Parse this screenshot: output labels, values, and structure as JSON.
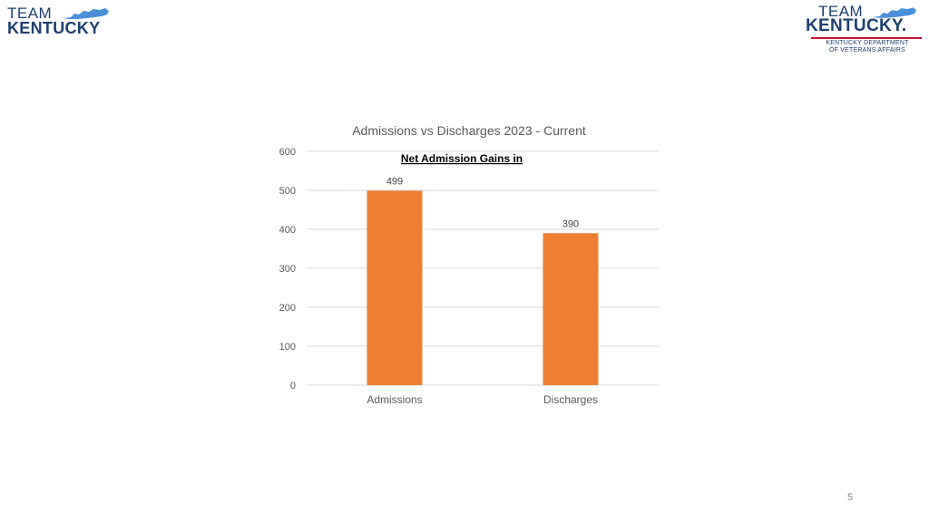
{
  "logos": {
    "left": {
      "team": "TEAM",
      "kentucky": "KENTUCKY"
    },
    "right": {
      "team": "TEAM",
      "kentucky": "KENTUCKY.",
      "dept_line1": "KENTUCKY DEPARTMENT",
      "dept_line2": "OF VETERANS AFFAIRS"
    },
    "colors": {
      "navy": "#1e3f6e",
      "sky": "#4a90d9",
      "red": "#c8102e"
    }
  },
  "chart_data": {
    "type": "bar",
    "title": "Admissions vs Discharges 2023 - Current",
    "annotation": "Net Admission Gains in",
    "categories": [
      "Admissions",
      "Discharges"
    ],
    "values": [
      499,
      390
    ],
    "data_labels": [
      "499",
      "390"
    ],
    "y_ticks": [
      "0",
      "100",
      "200",
      "300",
      "400",
      "500",
      "600"
    ],
    "ylim": [
      0,
      600
    ],
    "xlabel": "",
    "ylabel": "",
    "grid": true,
    "legend": "none",
    "bar_color": "#ed7d31"
  },
  "page_number": "5"
}
